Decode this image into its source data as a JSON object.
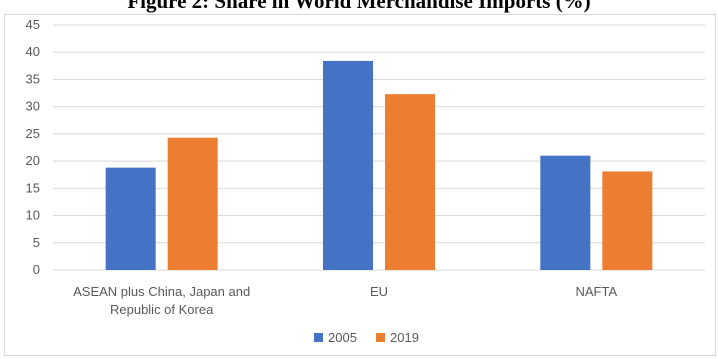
{
  "chart_data": {
    "type": "bar",
    "title": "Figure 2: Share in World Merchandise Imports (%)",
    "categories": [
      [
        "ASEAN plus China, Japan and",
        "Republic of Korea"
      ],
      [
        "EU"
      ],
      [
        "NAFTA"
      ]
    ],
    "series": [
      {
        "name": "2005",
        "color": "#4472c4",
        "values": [
          18.8,
          38.4,
          21.0
        ]
      },
      {
        "name": "2019",
        "color": "#ed7d31",
        "values": [
          24.3,
          32.3,
          18.1
        ]
      }
    ],
    "ylim": [
      0,
      45
    ],
    "yticks": [
      0,
      5,
      10,
      15,
      20,
      25,
      30,
      35,
      40,
      45
    ],
    "grid": true,
    "legend": "bottom"
  }
}
